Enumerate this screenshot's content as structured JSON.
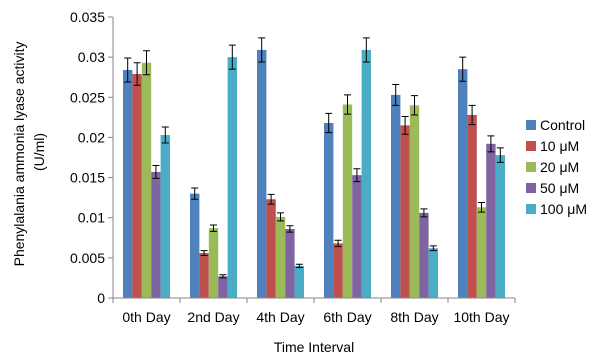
{
  "chart_data": {
    "type": "bar",
    "title": "",
    "xlabel": "Time Interval",
    "ylabel_lines": [
      "Phenylalania ammonia lyase activity",
      "(U/ml)"
    ],
    "categories": [
      "0th Day",
      "2nd Day",
      "4th  Day",
      "6th Day",
      "8th Day",
      "10th Day"
    ],
    "ylim": [
      0,
      0.035
    ],
    "yticks": [
      0,
      0.005,
      0.01,
      0.015,
      0.02,
      0.025,
      0.03,
      0.035
    ],
    "ytick_labels": [
      "0",
      "0.005",
      "0.01",
      "0.015",
      "0.02",
      "0.025",
      "0.03",
      "0.035"
    ],
    "grid": false,
    "error_bars": true,
    "legend_position": "right",
    "series": [
      {
        "name": "Control",
        "color": "#4f81bd",
        "values": [
          0.0284,
          0.013,
          0.0309,
          0.0218,
          0.0253,
          0.0285
        ],
        "errors": [
          0.0015,
          0.0007,
          0.0015,
          0.0012,
          0.0013,
          0.0015
        ]
      },
      {
        "name": "10 μM",
        "color": "#c0504d",
        "values": [
          0.0279,
          0.0056,
          0.0123,
          0.0068,
          0.0215,
          0.0228
        ],
        "errors": [
          0.0014,
          0.0003,
          0.0006,
          0.0004,
          0.0011,
          0.0012
        ]
      },
      {
        "name": "20 μM",
        "color": "#9bbb59",
        "values": [
          0.0293,
          0.0087,
          0.0101,
          0.0241,
          0.024,
          0.0113
        ],
        "errors": [
          0.0015,
          0.0004,
          0.0005,
          0.0012,
          0.0012,
          0.0006
        ]
      },
      {
        "name": "50 μM",
        "color": "#8064a2",
        "values": [
          0.0157,
          0.0027,
          0.0086,
          0.0153,
          0.0106,
          0.0192
        ],
        "errors": [
          0.0008,
          0.0002,
          0.0004,
          0.0008,
          0.0005,
          0.001
        ]
      },
      {
        "name": "100 μM",
        "color": "#4bacc6",
        "values": [
          0.0203,
          0.03,
          0.004,
          0.0309,
          0.0062,
          0.0178
        ],
        "errors": [
          0.001,
          0.0015,
          0.0002,
          0.0015,
          0.0003,
          0.0009
        ]
      }
    ]
  }
}
